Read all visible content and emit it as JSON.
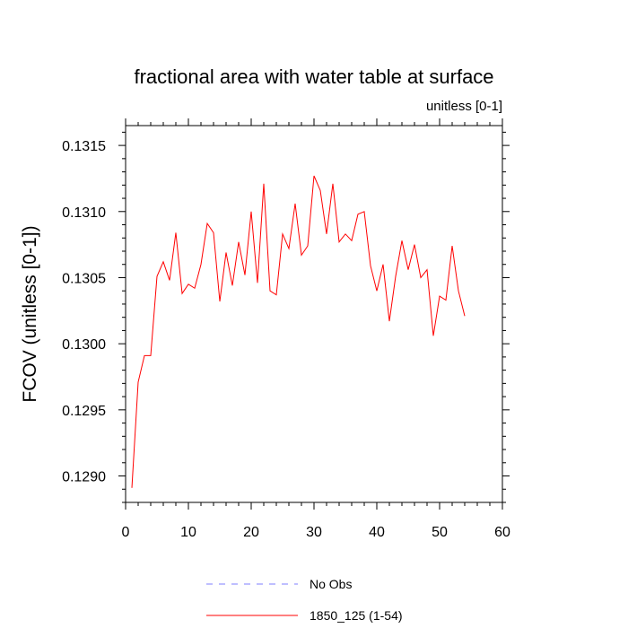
{
  "chart_data": {
    "type": "line",
    "title": "fractional area with water table at surface",
    "units_label": "unitless [0-1]",
    "xlabel": "",
    "ylabel": "FCOV  (unitless [0-1])",
    "xlim": [
      0,
      60
    ],
    "ylim": [
      0.1288,
      0.13165
    ],
    "x_ticks": [
      0,
      10,
      20,
      30,
      40,
      50,
      60
    ],
    "x_tick_labels": [
      "0",
      "10",
      "20",
      "30",
      "40",
      "50",
      "60"
    ],
    "y_ticks": [
      0.129,
      0.1295,
      0.13,
      0.1305,
      0.131,
      0.1315
    ],
    "y_tick_labels": [
      "0.1290",
      "0.1295",
      "0.1300",
      "0.1305",
      "0.1310",
      "0.1315"
    ],
    "grid": false,
    "legend_position": "bottom",
    "series": [
      {
        "name": "No Obs",
        "color": "#7f7fff",
        "style": "dashed",
        "x": [],
        "y": []
      },
      {
        "name": "1850_125 (1-54)",
        "color": "#ff0000",
        "style": "solid",
        "x": [
          1,
          2,
          3,
          4,
          5,
          6,
          7,
          8,
          9,
          10,
          11,
          12,
          13,
          14,
          15,
          16,
          17,
          18,
          19,
          20,
          21,
          22,
          23,
          24,
          25,
          26,
          27,
          28,
          29,
          30,
          31,
          32,
          33,
          34,
          35,
          36,
          37,
          38,
          39,
          40,
          41,
          42,
          43,
          44,
          45,
          46,
          47,
          48,
          49,
          50,
          51,
          52,
          53,
          54
        ],
        "y": [
          0.12891,
          0.12971,
          0.12991,
          0.12991,
          0.13051,
          0.13062,
          0.13048,
          0.13084,
          0.13038,
          0.13045,
          0.13042,
          0.1306,
          0.13091,
          0.13084,
          0.13032,
          0.13069,
          0.13044,
          0.13077,
          0.13052,
          0.131,
          0.13046,
          0.13121,
          0.1304,
          0.13037,
          0.13083,
          0.13072,
          0.13106,
          0.13067,
          0.13074,
          0.13127,
          0.13116,
          0.13083,
          0.13121,
          0.13077,
          0.13083,
          0.13078,
          0.13098,
          0.131,
          0.13059,
          0.1304,
          0.1306,
          0.13017,
          0.13051,
          0.13078,
          0.13056,
          0.13075,
          0.1305,
          0.13056,
          0.13006,
          0.13036,
          0.13033,
          0.13074,
          0.1304,
          0.13021
        ]
      }
    ]
  }
}
